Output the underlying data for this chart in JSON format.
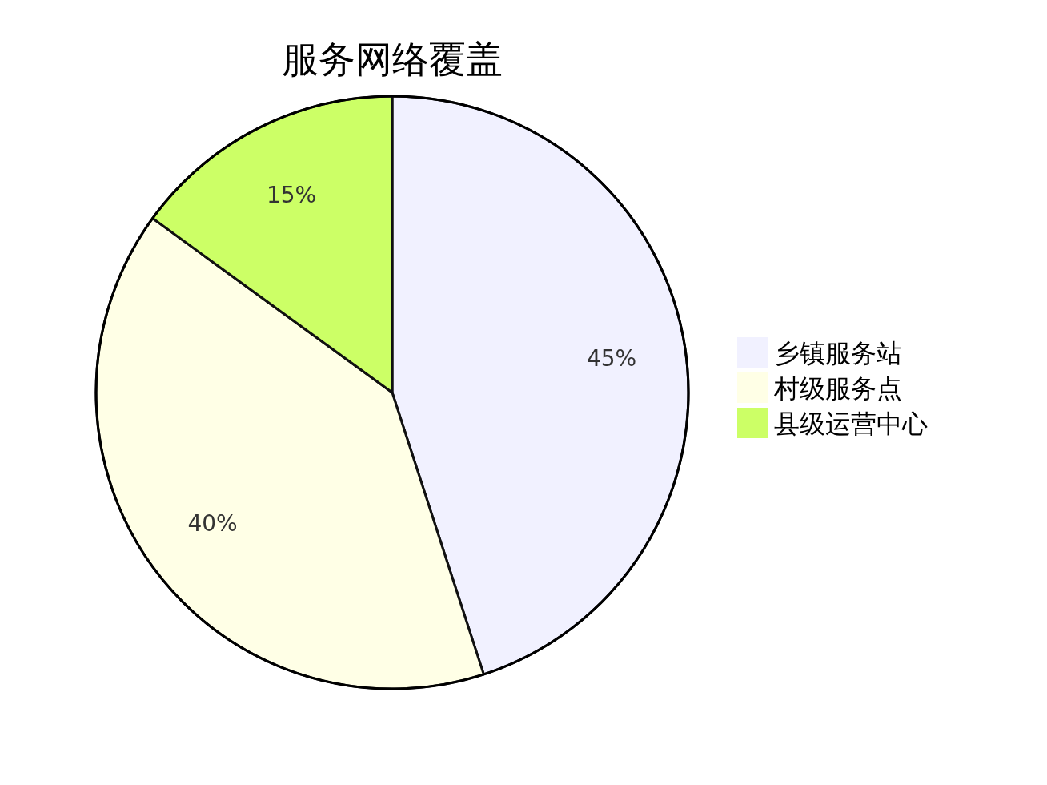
{
  "chart_data": {
    "type": "pie",
    "title": "服务网络覆盖",
    "categories": [
      "乡镇服务站",
      "村级服务点",
      "县级运营中心"
    ],
    "values": [
      45,
      40,
      15
    ],
    "colors": [
      "#f1f1ff",
      "#ffffe6",
      "#ccff66"
    ],
    "value_labels": [
      "45%",
      "40%",
      "15%"
    ],
    "legend": "right"
  }
}
